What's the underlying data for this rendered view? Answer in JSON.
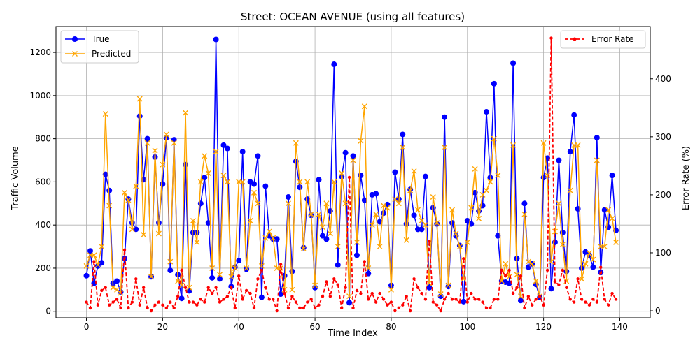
{
  "chart_data": {
    "type": "line",
    "title": "Street: OCEAN AVENUE (using all features)",
    "xlabel": "Time Index",
    "ylabel_left": "Traffic Volume",
    "ylabel_right": "Error Rate (%)",
    "xlim": [
      -8,
      148
    ],
    "ylim_left": [
      -30,
      1320
    ],
    "ylim_right": [
      -12,
      490
    ],
    "xticks": [
      0,
      20,
      40,
      60,
      80,
      100,
      120,
      140
    ],
    "yticks_left": [
      0,
      200,
      400,
      600,
      800,
      1000,
      1200
    ],
    "yticks_right": [
      0,
      100,
      200,
      300,
      400
    ],
    "grid": true,
    "legend_left": {
      "placement": "upper left",
      "entries": [
        "True",
        "Predicted"
      ]
    },
    "legend_right": {
      "placement": "upper right",
      "entries": [
        "Error Rate"
      ]
    },
    "colors": {
      "true": "#0000ff",
      "predicted": "#ffa500",
      "error": "#ff0000"
    },
    "x": [
      0,
      1,
      2,
      3,
      4,
      5,
      6,
      7,
      8,
      9,
      10,
      11,
      12,
      13,
      14,
      15,
      16,
      17,
      18,
      19,
      20,
      21,
      22,
      23,
      24,
      25,
      26,
      27,
      28,
      29,
      30,
      31,
      32,
      33,
      34,
      35,
      36,
      37,
      38,
      39,
      40,
      41,
      42,
      43,
      44,
      45,
      46,
      47,
      48,
      49,
      50,
      51,
      52,
      53,
      54,
      55,
      56,
      57,
      58,
      59,
      60,
      61,
      62,
      63,
      64,
      65,
      66,
      67,
      68,
      69,
      70,
      71,
      72,
      73,
      74,
      75,
      76,
      77,
      78,
      79,
      80,
      81,
      82,
      83,
      84,
      85,
      86,
      87,
      88,
      89,
      90,
      91,
      92,
      93,
      94,
      95,
      96,
      97,
      98,
      99,
      100,
      101,
      102,
      103,
      104,
      105,
      106,
      107,
      108,
      109,
      110,
      111,
      112,
      113,
      114,
      115,
      116,
      117,
      118,
      119,
      120,
      121,
      122,
      123,
      124,
      125,
      126,
      127,
      128,
      129,
      130,
      131,
      132,
      133,
      134,
      135,
      136,
      137,
      138,
      139
    ],
    "series": [
      {
        "name": "True",
        "marker": "circle",
        "axis": "left",
        "values": [
          165,
          280,
          130,
          210,
          225,
          635,
          560,
          130,
          140,
          90,
          245,
          520,
          410,
          380,
          905,
          610,
          800,
          160,
          715,
          410,
          590,
          805,
          190,
          795,
          170,
          60,
          680,
          95,
          365,
          365,
          500,
          620,
          410,
          155,
          1260,
          150,
          770,
          755,
          115,
          205,
          235,
          740,
          195,
          600,
          590,
          720,
          65,
          580,
          350,
          335,
          335,
          80,
          165,
          530,
          185,
          695,
          575,
          295,
          520,
          445,
          110,
          610,
          350,
          335,
          465,
          1145,
          215,
          625,
          735,
          40,
          720,
          260,
          630,
          515,
          175,
          540,
          545,
          415,
          455,
          495,
          120,
          645,
          520,
          820,
          405,
          565,
          445,
          380,
          380,
          625,
          110,
          480,
          405,
          70,
          900,
          115,
          410,
          350,
          305,
          45,
          420,
          405,
          550,
          465,
          490,
          925,
          620,
          1055,
          350,
          140,
          135,
          130,
          1150,
          245,
          50,
          500,
          205,
          220,
          125,
          65,
          620,
          710,
          105,
          320,
          700,
          365,
          185,
          740,
          910,
          475,
          200,
          275,
          260,
          205,
          805,
          180,
          470,
          390,
          630,
          375
        ]
      },
      {
        "name": "Predicted",
        "marker": "x",
        "axis": "left",
        "values": [
          210,
          260,
          260,
          215,
          300,
          915,
          490,
          110,
          100,
          85,
          550,
          515,
          380,
          580,
          985,
          355,
          780,
          160,
          745,
          360,
          680,
          820,
          230,
          780,
          140,
          120,
          920,
          110,
          420,
          320,
          600,
          720,
          640,
          200,
          740,
          170,
          630,
          600,
          160,
          200,
          600,
          600,
          200,
          420,
          550,
          500,
          210,
          340,
          370,
          340,
          200,
          200,
          100,
          500,
          100,
          780,
          600,
          290,
          600,
          450,
          120,
          450,
          390,
          500,
          360,
          600,
          300,
          640,
          500,
          70,
          700,
          320,
          790,
          950,
          200,
          400,
          450,
          300,
          490,
          480,
          100,
          520,
          500,
          760,
          330,
          560,
          650,
          470,
          420,
          400,
          130,
          530,
          410,
          80,
          760,
          120,
          470,
          360,
          300,
          150,
          320,
          480,
          660,
          430,
          540,
          560,
          600,
          800,
          630,
          140,
          220,
          160,
          770,
          170,
          70,
          450,
          230,
          220,
          140,
          70,
          780,
          630,
          230,
          370,
          500,
          310,
          140,
          560,
          770,
          770,
          150,
          220,
          270,
          240,
          700,
          300,
          300,
          470,
          430,
          320
        ]
      },
      {
        "name": "Error Rate",
        "marker": "dot",
        "axis": "right",
        "values": [
          15,
          5,
          85,
          10,
          35,
          40,
          10,
          15,
          20,
          5,
          105,
          5,
          15,
          55,
          10,
          40,
          5,
          0,
          10,
          15,
          10,
          5,
          15,
          5,
          25,
          70,
          40,
          15,
          15,
          10,
          20,
          15,
          40,
          30,
          40,
          15,
          20,
          25,
          40,
          5,
          60,
          20,
          35,
          30,
          5,
          55,
          70,
          40,
          20,
          20,
          0,
          80,
          30,
          5,
          25,
          15,
          5,
          5,
          15,
          20,
          5,
          10,
          25,
          50,
          25,
          55,
          45,
          5,
          40,
          230,
          5,
          35,
          30,
          85,
          20,
          30,
          15,
          30,
          20,
          10,
          15,
          0,
          5,
          10,
          25,
          0,
          55,
          40,
          30,
          20,
          120,
          15,
          10,
          0,
          20,
          30,
          20,
          20,
          15,
          90,
          15,
          30,
          20,
          20,
          15,
          5,
          5,
          20,
          20,
          70,
          60,
          70,
          30,
          40,
          60,
          5,
          25,
          10,
          20,
          25,
          10,
          70,
          470,
          50,
          45,
          70,
          40,
          20,
          15,
          55,
          20,
          15,
          10,
          20,
          15,
          75,
          20,
          10,
          30,
          20
        ]
      }
    ]
  }
}
